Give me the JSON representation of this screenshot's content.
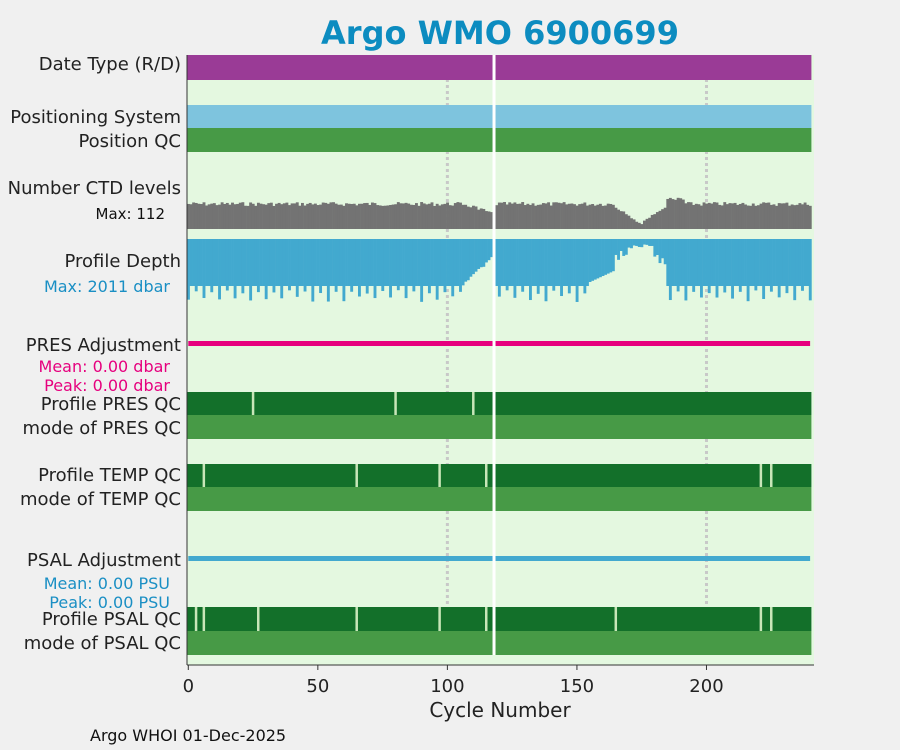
{
  "title": "Argo WMO 6900699",
  "footer": "Argo WHOI 01-Dec-2025",
  "colors": {
    "background": "#f0f0f0",
    "plot_background": "#e4f8e0",
    "date_type": "#9a3b96",
    "positioning_system": "#7ec4de",
    "qc_good_mode": "#479a46",
    "qc_profile_good": "#13702a",
    "qc_flag_line": "#c8e6b8",
    "ctd_levels": "#737373",
    "profile_depth": "#42a9cf",
    "pres_adjustment": "#e6007e",
    "psal_adjustment": "#42a9cf",
    "title_color": "#0c8cc0",
    "grid_dots": "#c8c8c8",
    "gap": "#ffffff"
  },
  "chart_data": {
    "type": "timeline",
    "xlabel": "Cycle Number",
    "xlim": [
      -0.5,
      241.5
    ],
    "xticks": [
      0,
      50,
      100,
      150,
      200
    ],
    "grid_x": [
      100,
      200
    ],
    "missing_cycles": [
      118
    ],
    "rows": [
      {
        "id": "date-type",
        "label": "Date Type (R/D)",
        "kind": "bar",
        "color": "date_type"
      },
      {
        "id": "positioning-system",
        "label": "Positioning System",
        "kind": "bar",
        "color": "positioning_system"
      },
      {
        "id": "position-qc",
        "label": "Position QC",
        "kind": "bar",
        "color": "qc_good_mode"
      },
      {
        "id": "ctd-levels",
        "label": "Number CTD levels",
        "note": "Max: 112",
        "kind": "ctd",
        "max": 112
      },
      {
        "id": "profile-depth",
        "label": "Profile Depth",
        "note": "Max: 2011 dbar",
        "kind": "depth",
        "max": 2011,
        "unit": "dbar"
      },
      {
        "id": "pres-adjustment",
        "label": "PRES Adjustment",
        "notes": [
          "Mean: 0.00 dbar",
          "Peak: 0.00 dbar"
        ],
        "kind": "adjust",
        "color": "pres_adjustment",
        "mean": 0.0,
        "peak": 0.0
      },
      {
        "id": "profile-pres-qc",
        "label": "Profile PRES QC",
        "kind": "profileqc",
        "flag_cycles": [
          25,
          80,
          110
        ]
      },
      {
        "id": "mode-pres-qc",
        "label": "mode of PRES QC",
        "kind": "bar",
        "color": "qc_good_mode"
      },
      {
        "id": "profile-temp-qc",
        "label": "Profile TEMP QC",
        "kind": "profileqc",
        "flag_cycles": [
          6,
          65,
          97,
          115,
          221,
          225
        ]
      },
      {
        "id": "mode-temp-qc",
        "label": "mode of TEMP QC",
        "kind": "bar",
        "color": "qc_good_mode"
      },
      {
        "id": "psal-adjustment",
        "label": "PSAL Adjustment",
        "notes": [
          "Mean: 0.00 PSU",
          "Peak: 0.00 PSU"
        ],
        "kind": "adjust",
        "color": "psal_adjustment",
        "mean": 0.0,
        "peak": 0.0
      },
      {
        "id": "profile-psal-qc",
        "label": "Profile PSAL QC",
        "kind": "profileqc",
        "flag_cycles": [
          3,
          6,
          27,
          65,
          97,
          115,
          165,
          221,
          225
        ]
      },
      {
        "id": "mode-psal-qc",
        "label": "mode of PSAL QC",
        "kind": "bar",
        "color": "qc_good_mode"
      }
    ]
  }
}
